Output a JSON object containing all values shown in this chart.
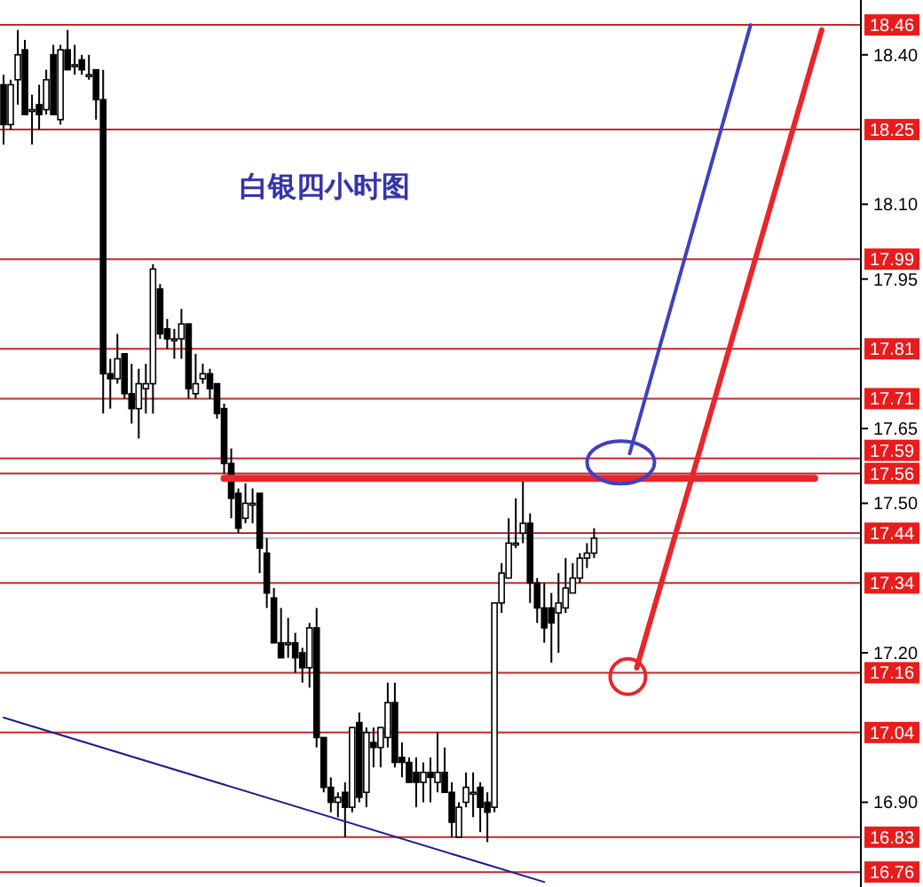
{
  "chart_data": {
    "type": "candlestick",
    "title": "白银四小时图",
    "categories": [
      null,
      null,
      null,
      null,
      null,
      null,
      null,
      null,
      null,
      null,
      null,
      null,
      null,
      null,
      null,
      null,
      null,
      null,
      null,
      null,
      null,
      null,
      null,
      null,
      null,
      null,
      null,
      null,
      null,
      null,
      null,
      null,
      null,
      null,
      null,
      null,
      null,
      null,
      null,
      null,
      null,
      null,
      null,
      null,
      null,
      null,
      null,
      null,
      null,
      null,
      null,
      null,
      null,
      null,
      null,
      null,
      null,
      null,
      null,
      null,
      null,
      null,
      null,
      null,
      null,
      null,
      null,
      null,
      null,
      null,
      null,
      null,
      null,
      null,
      null,
      null,
      null,
      null,
      null,
      null,
      null,
      null,
      null,
      null,
      null,
      null,
      null,
      null,
      null,
      null,
      null,
      null,
      null,
      null,
      null,
      null,
      null,
      null,
      null,
      null,
      null,
      null,
      null,
      null,
      null,
      null,
      null,
      null,
      null,
      null,
      null,
      null,
      null,
      null,
      null,
      null,
      null,
      null,
      null,
      null,
      null
    ],
    "ohlc": [
      [
        18.34,
        18.36,
        18.22,
        18.26
      ],
      [
        18.26,
        18.35,
        18.25,
        18.34
      ],
      [
        18.35,
        18.45,
        18.3,
        18.4
      ],
      [
        18.41,
        18.43,
        18.28,
        18.28
      ],
      [
        18.29,
        18.32,
        18.22,
        18.29
      ],
      [
        18.3,
        18.34,
        18.25,
        18.28
      ],
      [
        18.29,
        18.37,
        18.28,
        18.35
      ],
      [
        18.4,
        18.42,
        18.28,
        18.28
      ],
      [
        18.27,
        18.42,
        18.26,
        18.41
      ],
      [
        18.41,
        18.45,
        18.37,
        18.37
      ],
      [
        18.38,
        18.42,
        18.36,
        18.38
      ],
      [
        18.39,
        18.4,
        18.36,
        18.37
      ],
      [
        18.36,
        18.4,
        18.35,
        18.36
      ],
      [
        18.37,
        18.37,
        18.27,
        18.31
      ],
      [
        18.31,
        18.37,
        17.68,
        17.76
      ],
      [
        17.76,
        17.79,
        17.69,
        17.75
      ],
      [
        17.75,
        17.84,
        17.74,
        17.79
      ],
      [
        17.8,
        17.8,
        17.71,
        17.72
      ],
      [
        17.72,
        17.78,
        17.66,
        17.69
      ],
      [
        17.69,
        17.77,
        17.63,
        17.74
      ],
      [
        17.73,
        17.78,
        17.68,
        17.74
      ],
      [
        17.74,
        17.98,
        17.68,
        17.97
      ],
      [
        17.93,
        17.94,
        17.83,
        17.84
      ],
      [
        17.85,
        17.87,
        17.81,
        17.83
      ],
      [
        17.83,
        17.85,
        17.79,
        17.83
      ],
      [
        17.83,
        17.89,
        17.79,
        17.86
      ],
      [
        17.86,
        17.86,
        17.71,
        17.73
      ],
      [
        17.72,
        17.8,
        17.71,
        17.74
      ],
      [
        17.75,
        17.78,
        17.74,
        17.76
      ],
      [
        17.76,
        17.77,
        17.71,
        17.73
      ],
      [
        17.74,
        17.74,
        17.67,
        17.68
      ],
      [
        17.69,
        17.7,
        17.56,
        17.58
      ],
      [
        17.58,
        17.61,
        17.47,
        17.51
      ],
      [
        17.52,
        17.53,
        17.44,
        17.45
      ],
      [
        17.47,
        17.54,
        17.46,
        17.5
      ],
      [
        17.5,
        17.53,
        17.46,
        17.5
      ],
      [
        17.52,
        17.52,
        17.36,
        17.41
      ],
      [
        17.4,
        17.43,
        17.29,
        17.32
      ],
      [
        17.31,
        17.33,
        17.22,
        17.22
      ],
      [
        17.22,
        17.29,
        17.19,
        17.19
      ],
      [
        17.22,
        17.27,
        17.19,
        17.22
      ],
      [
        17.22,
        17.24,
        17.16,
        17.19
      ],
      [
        17.2,
        17.21,
        17.14,
        17.17
      ],
      [
        17.17,
        17.26,
        17.13,
        17.25
      ],
      [
        17.25,
        17.29,
        17.01,
        17.03
      ],
      [
        17.03,
        17.03,
        16.92,
        16.93
      ],
      [
        16.93,
        16.95,
        16.88,
        16.9
      ],
      [
        16.9,
        16.92,
        16.87,
        16.91
      ],
      [
        16.92,
        16.94,
        16.83,
        16.89
      ],
      [
        16.89,
        17.05,
        16.88,
        17.05
      ],
      [
        17.06,
        17.08,
        16.9,
        16.91
      ],
      [
        16.92,
        17.05,
        16.89,
        17.04
      ],
      [
        17.02,
        17.05,
        16.97,
        17.01
      ],
      [
        17.01,
        17.05,
        16.97,
        17.05
      ],
      [
        17.03,
        17.14,
        17.01,
        17.1
      ],
      [
        17.1,
        17.14,
        16.97,
        16.98
      ],
      [
        16.99,
        17.02,
        16.95,
        16.98
      ],
      [
        16.98,
        16.99,
        16.94,
        16.94
      ],
      [
        16.96,
        16.99,
        16.89,
        16.94
      ],
      [
        16.94,
        16.98,
        16.9,
        16.96
      ],
      [
        16.96,
        16.99,
        16.9,
        16.95
      ],
      [
        16.94,
        17.04,
        16.92,
        16.96
      ],
      [
        16.96,
        17.01,
        16.92,
        16.92
      ],
      [
        16.92,
        16.94,
        16.83,
        16.86
      ],
      [
        16.83,
        16.9,
        16.83,
        16.89
      ],
      [
        16.9,
        16.96,
        16.89,
        16.93
      ],
      [
        16.92,
        16.96,
        16.87,
        16.92
      ],
      [
        16.93,
        16.94,
        16.84,
        16.89
      ],
      [
        16.9,
        16.92,
        16.82,
        16.88
      ],
      [
        16.89,
        17.3,
        16.88,
        17.3
      ],
      [
        17.3,
        17.38,
        17.28,
        17.36
      ],
      [
        17.35,
        17.47,
        17.35,
        17.42
      ],
      [
        17.42,
        17.51,
        17.41,
        17.42
      ],
      [
        17.44,
        17.55,
        17.42,
        17.46
      ],
      [
        17.46,
        17.48,
        17.3,
        17.34
      ],
      [
        17.34,
        17.35,
        17.26,
        17.29
      ],
      [
        17.29,
        17.34,
        17.22,
        17.25
      ],
      [
        17.29,
        17.32,
        17.18,
        17.26
      ],
      [
        17.28,
        17.36,
        17.2,
        17.3
      ],
      [
        17.29,
        17.39,
        17.28,
        17.33
      ],
      [
        17.32,
        17.38,
        17.32,
        17.35
      ],
      [
        17.35,
        17.4,
        17.34,
        17.39
      ],
      [
        17.39,
        17.42,
        17.37,
        17.4
      ],
      [
        17.4,
        17.45,
        17.39,
        17.43
      ],
      null,
      null,
      null,
      null,
      null,
      null,
      null,
      null,
      null,
      null,
      null,
      null,
      null,
      null,
      null,
      null,
      null,
      null,
      null,
      null,
      null,
      null,
      null,
      null,
      null,
      null,
      null,
      null,
      null,
      null,
      null,
      null,
      null,
      null,
      null,
      null,
      null
    ],
    "series": [
      {
        "type": "line",
        "color": "#1c1c8c",
        "values": [
          17.07,
          null,
          null,
          null,
          null,
          null,
          null,
          null,
          null,
          null,
          null,
          null,
          null,
          null,
          null,
          null,
          null,
          null,
          null,
          null,
          null,
          null,
          null,
          null,
          null,
          null,
          null,
          null,
          null,
          null,
          null,
          null,
          null,
          null,
          null,
          null,
          null,
          null,
          null,
          null,
          null,
          null,
          null,
          null,
          null,
          null,
          null,
          null,
          null,
          null,
          null,
          null,
          null,
          null,
          null,
          null,
          null,
          null,
          null,
          null,
          null,
          null,
          null,
          null,
          null,
          null,
          null,
          null,
          null,
          null,
          null,
          null,
          null,
          null,
          null,
          null,
          16.74,
          null,
          null,
          null,
          null,
          null,
          null,
          null,
          null,
          null,
          null,
          null,
          null,
          null,
          null,
          null,
          null,
          null,
          null,
          null,
          null,
          null,
          null,
          null,
          null,
          null,
          null,
          null,
          null,
          null,
          null,
          null,
          null,
          null,
          null,
          null,
          null,
          null,
          null,
          null,
          null,
          null,
          null,
          null,
          null
        ]
      },
      {
        "type": "line",
        "color": "#e8262b",
        "values": [
          null,
          null,
          null,
          null,
          null,
          null,
          null,
          null,
          null,
          null,
          null,
          null,
          null,
          null,
          null,
          null,
          null,
          null,
          null,
          null,
          null,
          null,
          null,
          null,
          null,
          null,
          null,
          null,
          null,
          null,
          null,
          17.55,
          null,
          null,
          null,
          null,
          null,
          null,
          null,
          null,
          null,
          null,
          null,
          null,
          null,
          null,
          null,
          null,
          null,
          null,
          null,
          null,
          null,
          null,
          null,
          null,
          null,
          null,
          null,
          null,
          null,
          null,
          null,
          null,
          null,
          null,
          null,
          null,
          null,
          null,
          null,
          null,
          null,
          null,
          null,
          null,
          null,
          null,
          null,
          null,
          null,
          null,
          null,
          null,
          null,
          null,
          null,
          null,
          null,
          null,
          null,
          null,
          null,
          null,
          null,
          null,
          null,
          null,
          null,
          null,
          null,
          null,
          null,
          null,
          null,
          null,
          null,
          null,
          null,
          null,
          null,
          null,
          null,
          null,
          17.55,
          null,
          null,
          null,
          null,
          null,
          null
        ]
      },
      {
        "type": "line",
        "color": "#4040c0",
        "values": [
          null,
          null,
          null,
          null,
          null,
          null,
          null,
          null,
          null,
          null,
          null,
          null,
          null,
          null,
          null,
          null,
          null,
          null,
          null,
          null,
          null,
          null,
          null,
          null,
          null,
          null,
          null,
          null,
          null,
          null,
          null,
          null,
          null,
          null,
          null,
          null,
          null,
          null,
          null,
          null,
          null,
          null,
          null,
          null,
          null,
          null,
          null,
          null,
          null,
          null,
          null,
          null,
          null,
          null,
          null,
          null,
          null,
          null,
          null,
          null,
          null,
          null,
          null,
          null,
          null,
          null,
          null,
          null,
          null,
          null,
          null,
          null,
          null,
          null,
          null,
          null,
          null,
          null,
          null,
          null,
          null,
          null,
          null,
          null,
          null,
          null,
          null,
          null,
          17.6,
          null,
          null,
          null,
          null,
          null,
          null,
          null,
          null,
          null,
          null,
          null,
          null,
          null,
          null,
          null,
          null,
          18.46,
          null,
          null,
          null,
          null,
          null,
          null,
          null,
          null,
          null,
          null,
          null,
          null,
          null,
          null,
          null
        ]
      },
      {
        "type": "line",
        "color": "#e8262b",
        "values": [
          null,
          null,
          null,
          null,
          null,
          null,
          null,
          null,
          null,
          null,
          null,
          null,
          null,
          null,
          null,
          null,
          null,
          null,
          null,
          null,
          null,
          null,
          null,
          null,
          null,
          null,
          null,
          null,
          null,
          null,
          null,
          null,
          null,
          null,
          null,
          null,
          null,
          null,
          null,
          null,
          null,
          null,
          null,
          null,
          null,
          null,
          null,
          null,
          null,
          null,
          null,
          null,
          null,
          null,
          null,
          null,
          null,
          null,
          null,
          null,
          null,
          null,
          null,
          null,
          null,
          null,
          null,
          null,
          null,
          null,
          null,
          null,
          null,
          null,
          null,
          null,
          null,
          null,
          null,
          null,
          null,
          null,
          null,
          null,
          null,
          null,
          null,
          null,
          null,
          17.17,
          null,
          null,
          null,
          null,
          null,
          null,
          null,
          null,
          null,
          null,
          null,
          null,
          null,
          null,
          null,
          null,
          null,
          null,
          null,
          null,
          null,
          null,
          null,
          null,
          null,
          18.45,
          null,
          null,
          null,
          null,
          null
        ]
      }
    ],
    "ylim": [
      16.73,
      18.51
    ],
    "yticks": [
      {
        "value": 18.4,
        "label": "18.40"
      },
      {
        "value": 18.1,
        "label": "18.10"
      },
      17.95,
      17.65,
      {
        "value": 17.5,
        "label": "17.50"
      },
      {
        "value": 17.2,
        "label": "17.20"
      },
      {
        "value": 16.9,
        "label": "16.90"
      }
    ],
    "tick_labels": "y",
    "ref_lines": [
      {
        "axis": "y",
        "value": 18.46,
        "label": "18.46",
        "color": "#c0282d"
      },
      {
        "axis": "y",
        "value": 18.25,
        "label": "18.25",
        "color": "#c0282d"
      },
      {
        "axis": "y",
        "value": 17.99,
        "label": "17.99",
        "color": "#c0282d"
      },
      {
        "axis": "y",
        "value": 17.81,
        "label": "17.81",
        "color": "#c0282d"
      },
      {
        "axis": "y",
        "value": 17.71,
        "label": "17.71",
        "color": "#c0282d"
      },
      {
        "axis": "y",
        "value": 17.59,
        "label": "17.59",
        "color": "#c0282d"
      },
      {
        "axis": "y",
        "value": 17.56,
        "label": "17.56",
        "color": "#c0282d"
      },
      {
        "axis": "y",
        "value": 17.44,
        "label": "17.44",
        "color": "#c0282d"
      },
      {
        "axis": "y",
        "value": 17.43,
        "color": "#bdbdbd"
      },
      {
        "axis": "y",
        "value": 17.34,
        "label": "17.34",
        "color": "#c0282d"
      },
      {
        "axis": "y",
        "value": 17.16,
        "label": "17.16",
        "color": "#c0282d"
      },
      {
        "axis": "y",
        "value": 17.04,
        "label": "17.04",
        "color": "#c0282d"
      },
      {
        "axis": "y",
        "value": 16.83,
        "label": "16.83",
        "color": "#c0282d"
      },
      {
        "axis": "y",
        "value": 16.76,
        "label": "16.76",
        "color": "#c0282d"
      }
    ]
  }
}
